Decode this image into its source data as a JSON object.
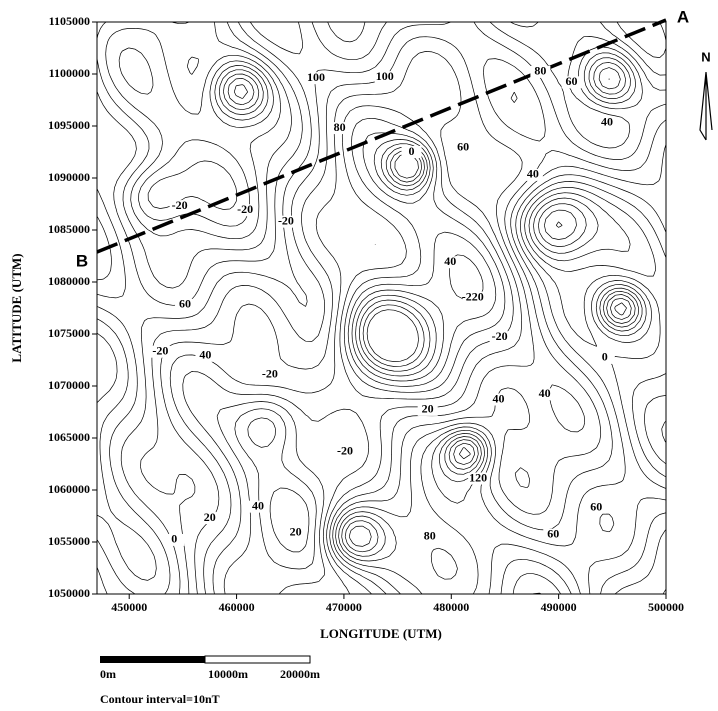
{
  "chart_data": {
    "type": "contour",
    "xlabel": "LONGITUDE (UTM)",
    "ylabel": "LATITUDE (UTM)",
    "xlim": [
      447000,
      500000
    ],
    "ylim": [
      1050000,
      1105000
    ],
    "xticks": [
      450000,
      460000,
      470000,
      480000,
      490000,
      500000
    ],
    "yticks": [
      1050000,
      1055000,
      1060000,
      1065000,
      1070000,
      1075000,
      1080000,
      1085000,
      1090000,
      1095000,
      1100000,
      1105000
    ],
    "contour_labels": [
      {
        "x": 467400,
        "y": 1099600,
        "value": 100
      },
      {
        "x": 473800,
        "y": 1099700,
        "value": 100
      },
      {
        "x": 488300,
        "y": 1100200,
        "value": 80
      },
      {
        "x": 491200,
        "y": 1099200,
        "value": 60
      },
      {
        "x": 494500,
        "y": 1095300,
        "value": 40
      },
      {
        "x": 469600,
        "y": 1094800,
        "value": 80
      },
      {
        "x": 476300,
        "y": 1092500,
        "value": 0
      },
      {
        "x": 481100,
        "y": 1092900,
        "value": 60
      },
      {
        "x": 487600,
        "y": 1090300,
        "value": 40
      },
      {
        "x": 454700,
        "y": 1087300,
        "value": -20
      },
      {
        "x": 460800,
        "y": 1086900,
        "value": -20
      },
      {
        "x": 464600,
        "y": 1085800,
        "value": -20
      },
      {
        "x": 455200,
        "y": 1077800,
        "value": 60
      },
      {
        "x": 452900,
        "y": 1073300,
        "value": -20
      },
      {
        "x": 457100,
        "y": 1072900,
        "value": 40
      },
      {
        "x": 463100,
        "y": 1071100,
        "value": -20
      },
      {
        "x": 479900,
        "y": 1081900,
        "value": 40
      },
      {
        "x": 482000,
        "y": 1078500,
        "value": -220
      },
      {
        "x": 484500,
        "y": 1074700,
        "value": -20
      },
      {
        "x": 488700,
        "y": 1069200,
        "value": 40
      },
      {
        "x": 494300,
        "y": 1072700,
        "value": 0
      },
      {
        "x": 470100,
        "y": 1063700,
        "value": -20
      },
      {
        "x": 457500,
        "y": 1057300,
        "value": 20
      },
      {
        "x": 462000,
        "y": 1058400,
        "value": 40
      },
      {
        "x": 478000,
        "y": 1055500,
        "value": 80
      },
      {
        "x": 489500,
        "y": 1055700,
        "value": 60
      },
      {
        "x": 493500,
        "y": 1058300,
        "value": 60
      },
      {
        "x": 482500,
        "y": 1061100,
        "value": 120
      },
      {
        "x": 454200,
        "y": 1055200,
        "value": 0
      },
      {
        "x": 465500,
        "y": 1055900,
        "value": 20
      },
      {
        "x": 477800,
        "y": 1067700,
        "value": 20
      },
      {
        "x": 484400,
        "y": 1068700,
        "value": 40
      }
    ],
    "profile": {
      "start_label": "B",
      "end_label": "A"
    },
    "north_label": "N",
    "scale_bar": {
      "labels": [
        "0m",
        "10000m",
        "20000m"
      ]
    },
    "note": "Contour interval=10nT"
  }
}
